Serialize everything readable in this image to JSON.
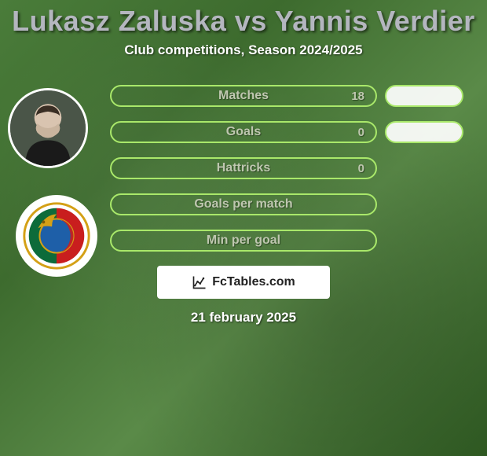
{
  "title": "Lukasz Zaluska vs Yannis Verdier",
  "subtitle": "Club competitions, Season 2024/2025",
  "date": "21 february 2025",
  "watermark": "FcTables.com",
  "colors": {
    "accent_green": "#a9e86a",
    "pill_text": "#bfc7b0",
    "white": "#ffffff"
  },
  "stats": [
    {
      "label": "Matches",
      "value": "18",
      "show_right_pill": true
    },
    {
      "label": "Goals",
      "value": "0",
      "show_right_pill": true
    },
    {
      "label": "Hattricks",
      "value": "0",
      "show_right_pill": false
    },
    {
      "label": "Goals per match",
      "value": "",
      "show_right_pill": false
    },
    {
      "label": "Min per goal",
      "value": "",
      "show_right_pill": false
    }
  ]
}
